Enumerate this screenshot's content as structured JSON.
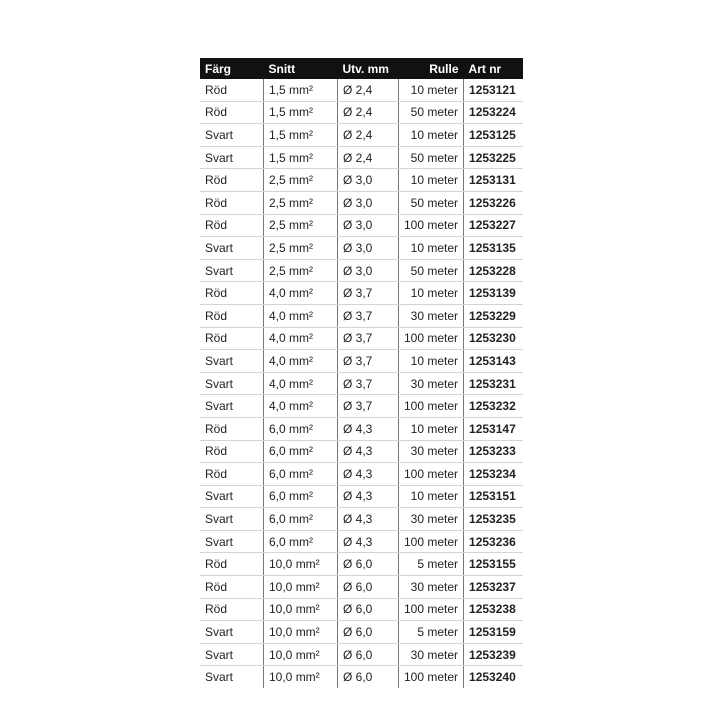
{
  "headers": [
    "Färg",
    "Snitt",
    "Utv. mm",
    "Rulle",
    "Art nr"
  ],
  "rows": [
    [
      "Röd",
      "1,5 mm²",
      "Ø 2,4",
      "10 meter",
      "1253121"
    ],
    [
      "Röd",
      "1,5 mm²",
      "Ø 2,4",
      "50 meter",
      "1253224"
    ],
    [
      "Svart",
      "1,5 mm²",
      "Ø 2,4",
      "10 meter",
      "1253125"
    ],
    [
      "Svart",
      "1,5 mm²",
      "Ø 2,4",
      "50 meter",
      "1253225"
    ],
    [
      "Röd",
      "2,5 mm²",
      "Ø 3,0",
      "10 meter",
      "1253131"
    ],
    [
      "Röd",
      "2,5 mm²",
      "Ø 3,0",
      "50 meter",
      "1253226"
    ],
    [
      "Röd",
      "2,5 mm²",
      "Ø 3,0",
      "100 meter",
      "1253227"
    ],
    [
      "Svart",
      "2,5 mm²",
      "Ø 3,0",
      "10 meter",
      "1253135"
    ],
    [
      "Svart",
      "2,5 mm²",
      "Ø 3,0",
      "50 meter",
      "1253228"
    ],
    [
      "Röd",
      "4,0 mm²",
      "Ø 3,7",
      "10 meter",
      "1253139"
    ],
    [
      "Röd",
      "4,0 mm²",
      "Ø 3,7",
      "30 meter",
      "1253229"
    ],
    [
      "Röd",
      "4,0 mm²",
      "Ø 3,7",
      "100 meter",
      "1253230"
    ],
    [
      "Svart",
      "4,0 mm²",
      "Ø 3,7",
      "10 meter",
      "1253143"
    ],
    [
      "Svart",
      "4,0 mm²",
      "Ø 3,7",
      "30 meter",
      "1253231"
    ],
    [
      "Svart",
      "4,0 mm²",
      "Ø 3,7",
      "100 meter",
      "1253232"
    ],
    [
      "Röd",
      "6,0 mm²",
      "Ø 4,3",
      "10 meter",
      "1253147"
    ],
    [
      "Röd",
      "6,0 mm²",
      "Ø 4,3",
      "30 meter",
      "1253233"
    ],
    [
      "Röd",
      "6,0 mm²",
      "Ø 4,3",
      "100 meter",
      "1253234"
    ],
    [
      "Svart",
      "6,0 mm²",
      "Ø 4,3",
      "10 meter",
      "1253151"
    ],
    [
      "Svart",
      "6,0 mm²",
      "Ø 4,3",
      "30 meter",
      "1253235"
    ],
    [
      "Svart",
      "6,0 mm²",
      "Ø 4,3",
      "100 meter",
      "1253236"
    ],
    [
      "Röd",
      "10,0 mm²",
      "Ø 6,0",
      "5 meter",
      "1253155"
    ],
    [
      "Röd",
      "10,0 mm²",
      "Ø 6,0",
      "30 meter",
      "1253237"
    ],
    [
      "Röd",
      "10,0 mm²",
      "Ø 6,0",
      "100 meter",
      "1253238"
    ],
    [
      "Svart",
      "10,0 mm²",
      "Ø 6,0",
      "5 meter",
      "1253159"
    ],
    [
      "Svart",
      "10,0 mm²",
      "Ø 6,0",
      "30 meter",
      "1253239"
    ],
    [
      "Svart",
      "10,0 mm²",
      "Ø 6,0",
      "100 meter",
      "1253240"
    ]
  ]
}
